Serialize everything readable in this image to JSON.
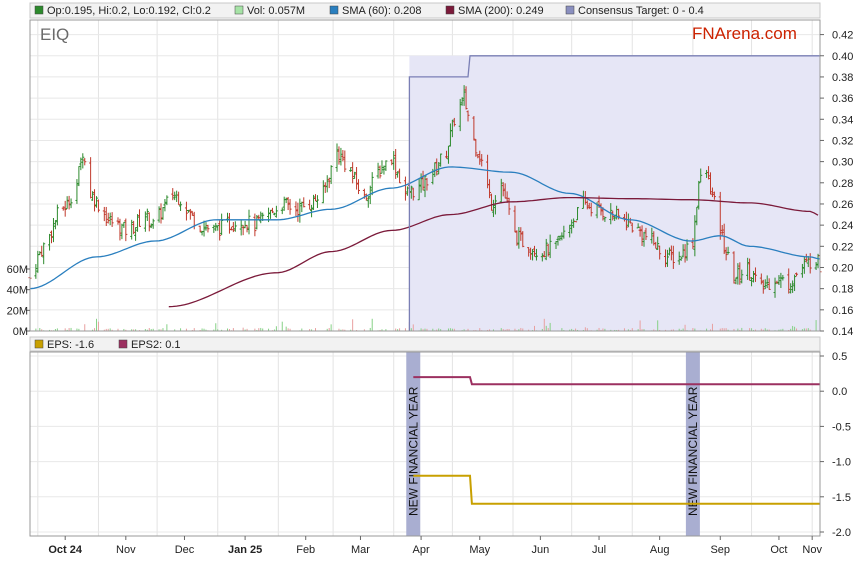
{
  "ticker": "EIQ",
  "brand": {
    "name": "FNArena.com",
    "color": "#cc2200"
  },
  "colors": {
    "up": "#2c8a2c",
    "down": "#c0392b",
    "sma60": "#2a7fbf",
    "sma200": "#7b1a3a",
    "consensus_line": "#7a7fb5",
    "consensus_fill": "#e6e6f6",
    "eps": "#c8a000",
    "eps2": "#9c3060",
    "marker": "#a9aed1"
  },
  "legend_top": {
    "ohlc": "Op:0.195, Hi:0.2, Lo:0.192, Cl:0.2",
    "volume": "Vol: 0.057M",
    "sma60": "SMA (60): 0.208",
    "sma200": "SMA (200): 0.249",
    "consensus": "Consensus Target: 0 - 0.4"
  },
  "legend_bottom": {
    "eps": "EPS: -1.6",
    "eps2": "EPS2: 0.1"
  },
  "chart_data": [
    {
      "type": "line",
      "panel": "price",
      "x_ticks": [
        "Oct 24",
        "Nov",
        "Dec",
        "Jan 25",
        "Feb",
        "Mar",
        "Apr",
        "May",
        "Jun",
        "Jul",
        "Aug",
        "Sep",
        "Oct",
        "Nov"
      ],
      "x_tick_bold": [
        "Oct 24",
        "Jan 25"
      ],
      "y_ticks": [
        0.14,
        0.16,
        0.18,
        0.2,
        0.22,
        0.24,
        0.26,
        0.28,
        0.3,
        0.32,
        0.34,
        0.36,
        0.38,
        0.4,
        0.42
      ],
      "y_tick_labels": [
        "0.14",
        "0.16",
        "0.18",
        "0.20",
        "0.22",
        "0.24",
        "0.26",
        "0.28",
        "0.30",
        "0.32",
        "0.34",
        "0.36",
        "0.38",
        "0.40",
        "0.42"
      ],
      "ylim": [
        0.14,
        0.43
      ],
      "volume_ticks": [
        "0M",
        "20M",
        "40M",
        "60M"
      ],
      "volume_scale": [
        0,
        60
      ],
      "price_close": [
        [
          "2024-09-27",
          0.19
        ],
        [
          "2024-10-01",
          0.21
        ],
        [
          "2024-10-07",
          0.23
        ],
        [
          "2024-10-11",
          0.25
        ],
        [
          "2024-10-16",
          0.26
        ],
        [
          "2024-10-21",
          0.28
        ],
        [
          "2024-10-24",
          0.31
        ],
        [
          "2024-10-28",
          0.27
        ],
        [
          "2024-11-01",
          0.26
        ],
        [
          "2024-11-06",
          0.245
        ],
        [
          "2024-11-11",
          0.24
        ],
        [
          "2024-11-15",
          0.235
        ],
        [
          "2024-11-20",
          0.24
        ],
        [
          "2024-11-25",
          0.25
        ],
        [
          "2024-11-29",
          0.24
        ],
        [
          "2024-12-04",
          0.255
        ],
        [
          "2024-12-09",
          0.27
        ],
        [
          "2024-12-13",
          0.265
        ],
        [
          "2024-12-18",
          0.25
        ],
        [
          "2024-12-23",
          0.24
        ],
        [
          "2024-12-30",
          0.235
        ],
        [
          "2025-01-06",
          0.24
        ],
        [
          "2025-01-13",
          0.245
        ],
        [
          "2025-01-20",
          0.24
        ],
        [
          "2025-01-27",
          0.25
        ],
        [
          "2025-02-03",
          0.26
        ],
        [
          "2025-02-10",
          0.255
        ],
        [
          "2025-02-17",
          0.26
        ],
        [
          "2025-02-24",
          0.27
        ],
        [
          "2025-03-03",
          0.31
        ],
        [
          "2025-03-10",
          0.29
        ],
        [
          "2025-03-17",
          0.265
        ],
        [
          "2025-03-24",
          0.29
        ],
        [
          "2025-03-31",
          0.305
        ],
        [
          "2025-04-07",
          0.27
        ],
        [
          "2025-04-14",
          0.275
        ],
        [
          "2025-04-21",
          0.29
        ],
        [
          "2025-04-28",
          0.31
        ],
        [
          "2025-05-02",
          0.34
        ],
        [
          "2025-05-07",
          0.36
        ],
        [
          "2025-05-12",
          0.32
        ],
        [
          "2025-05-16",
          0.3
        ],
        [
          "2025-05-21",
          0.26
        ],
        [
          "2025-05-26",
          0.28
        ],
        [
          "2025-06-02",
          0.23
        ],
        [
          "2025-06-09",
          0.22
        ],
        [
          "2025-06-16",
          0.215
        ],
        [
          "2025-06-23",
          0.22
        ],
        [
          "2025-06-30",
          0.24
        ],
        [
          "2025-07-07",
          0.26
        ],
        [
          "2025-07-14",
          0.255
        ],
        [
          "2025-07-21",
          0.25
        ],
        [
          "2025-07-28",
          0.245
        ],
        [
          "2025-08-04",
          0.235
        ],
        [
          "2025-08-11",
          0.225
        ],
        [
          "2025-08-18",
          0.21
        ],
        [
          "2025-08-25",
          0.21
        ],
        [
          "2025-09-01",
          0.225
        ],
        [
          "2025-09-04",
          0.28
        ],
        [
          "2025-09-08",
          0.29
        ],
        [
          "2025-09-12",
          0.26
        ],
        [
          "2025-09-17",
          0.22
        ],
        [
          "2025-09-22",
          0.19
        ],
        [
          "2025-09-29",
          0.2
        ],
        [
          "2025-10-06",
          0.18
        ],
        [
          "2025-10-13",
          0.19
        ],
        [
          "2025-10-20",
          0.185
        ],
        [
          "2025-10-27",
          0.2
        ],
        [
          "2025-11-03",
          0.21
        ],
        [
          "2025-11-05",
          0.2
        ]
      ],
      "sma60": [
        [
          "2024-09-27",
          0.18
        ],
        [
          "2024-10-31",
          0.21
        ],
        [
          "2024-11-30",
          0.225
        ],
        [
          "2024-12-31",
          0.245
        ],
        [
          "2025-01-31",
          0.245
        ],
        [
          "2025-02-28",
          0.255
        ],
        [
          "2025-03-31",
          0.275
        ],
        [
          "2025-04-30",
          0.295
        ],
        [
          "2025-05-31",
          0.29
        ],
        [
          "2025-06-30",
          0.27
        ],
        [
          "2025-07-31",
          0.245
        ],
        [
          "2025-08-31",
          0.225
        ],
        [
          "2025-09-15",
          0.23
        ],
        [
          "2025-09-30",
          0.22
        ],
        [
          "2025-10-31",
          0.21
        ],
        [
          "2025-11-05",
          0.208
        ]
      ],
      "sma200": [
        [
          "2024-12-07",
          0.163
        ],
        [
          "2025-01-31",
          0.195
        ],
        [
          "2025-02-28",
          0.215
        ],
        [
          "2025-03-31",
          0.235
        ],
        [
          "2025-04-30",
          0.25
        ],
        [
          "2025-05-31",
          0.262
        ],
        [
          "2025-06-30",
          0.266
        ],
        [
          "2025-07-31",
          0.265
        ],
        [
          "2025-08-31",
          0.264
        ],
        [
          "2025-09-30",
          0.261
        ],
        [
          "2025-10-31",
          0.253
        ],
        [
          "2025-11-05",
          0.249
        ]
      ],
      "consensus_target": [
        [
          "2025-04-09",
          0.38
        ],
        [
          "2025-05-09",
          0.38
        ],
        [
          "2025-05-10",
          0.4
        ],
        [
          "2025-11-05",
          0.4
        ]
      ]
    },
    {
      "type": "line",
      "panel": "eps",
      "y_ticks": [
        -2.0,
        -1.5,
        -1.0,
        -0.5,
        0.0,
        0.5
      ],
      "y_tick_labels": [
        "-2.0",
        "-1.5",
        "-1.0",
        "-0.5",
        "0.0",
        "0.5"
      ],
      "ylim": [
        -2.0,
        0.5
      ],
      "series": [
        {
          "name": "EPS",
          "points": [
            [
              "2025-04-11",
              -1.2
            ],
            [
              "2025-05-10",
              -1.2
            ],
            [
              "2025-05-11",
              -1.6
            ],
            [
              "2025-11-05",
              -1.6
            ]
          ]
        },
        {
          "name": "EPS2",
          "points": [
            [
              "2025-04-11",
              0.2
            ],
            [
              "2025-05-10",
              0.2
            ],
            [
              "2025-05-11",
              0.1
            ],
            [
              "2025-11-05",
              0.1
            ]
          ]
        }
      ],
      "annotations": [
        {
          "date": "2025-04-11",
          "text": "NEW FINANCIAL YEAR"
        },
        {
          "date": "2025-09-01",
          "text": "NEW FINANCIAL YEAR"
        }
      ]
    }
  ]
}
